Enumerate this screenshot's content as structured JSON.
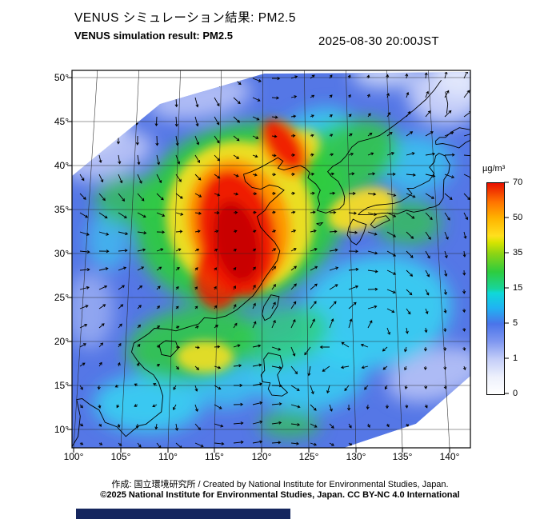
{
  "header": {
    "title_jp": "VENUS シミュレーション結果: PM2.5",
    "title_en": "VENUS simulation result: PM2.5",
    "timestamp": "2025-08-30 20:00JST"
  },
  "map": {
    "variable": "PM2.5",
    "overlay": "wind-vectors"
  },
  "axes": {
    "x_ticks": [
      "100°",
      "105°",
      "110°",
      "115°",
      "120°",
      "125°",
      "130°",
      "135°",
      "140°"
    ],
    "y_ticks": [
      "50°",
      "45°",
      "40°",
      "35°",
      "30°",
      "25°",
      "20°",
      "15°",
      "10°"
    ]
  },
  "colorbar": {
    "unit": "µg/m³",
    "tick_labels": [
      "70",
      "50",
      "35",
      "15",
      "5",
      "1",
      "0"
    ],
    "levels": [
      0,
      1,
      5,
      15,
      35,
      50,
      70
    ],
    "colors_low_to_high": [
      "#ffffff",
      "#c3cdf8",
      "#4a74ea",
      "#1fb4f2",
      "#2ecc3e",
      "#ffe01e",
      "#ff8c00",
      "#e81000"
    ]
  },
  "footer": {
    "credit": "作成: 国立環境研究所 / Created by National Institute for Environmental Studies, Japan.",
    "license": "©2025 National Institute for Environmental Studies, Japan. CC BY-NC 4.0 International"
  }
}
